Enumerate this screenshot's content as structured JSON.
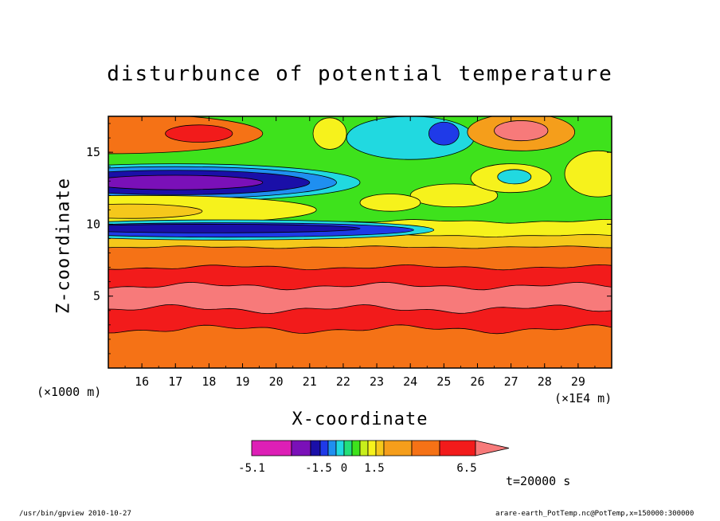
{
  "chart_data": {
    "type": "heatmap",
    "title": "disturbunce of potential temperature",
    "xlabel": "X-coordinate",
    "ylabel": "Z-coordinate",
    "x_multiplier": "(×1E4 m)",
    "y_multiplier": "(×1000 m)",
    "xlim": [
      15,
      30
    ],
    "ylim": [
      0,
      17.5
    ],
    "x_ticks": [
      "16",
      "17",
      "18",
      "19",
      "20",
      "21",
      "22",
      "23",
      "24",
      "25",
      "26",
      "27",
      "28",
      "29"
    ],
    "y_ticks": [
      "5",
      "10",
      "15"
    ],
    "timestamp": "t=20000 s",
    "colorbar": {
      "tick_labels": [
        "-5.1",
        "-1.5",
        "0",
        "1.5",
        "6.5"
      ],
      "colors": [
        "#dd1fb6",
        "#7a10b8",
        "#1a0fa8",
        "#1f3ae8",
        "#1f8ff0",
        "#21d9e0",
        "#22e07a",
        "#3ee21c",
        "#c8ef1c",
        "#f6f21c",
        "#f5c81b",
        "#f59e1b",
        "#f57216",
        "#f21b1b",
        "#f77a7a",
        "#f7b0b0"
      ]
    },
    "bands": [
      {
        "name": "surface-orange",
        "color": "#f57216"
      },
      {
        "name": "lower-red",
        "color": "#f21b1b"
      },
      {
        "name": "mid-pink",
        "color": "#f77a7a"
      },
      {
        "name": "upper-red",
        "color": "#f21b1b"
      },
      {
        "name": "upper-orange",
        "color": "#f57216"
      },
      {
        "name": "green-region",
        "color": "#3ee21c"
      },
      {
        "name": "top-orange",
        "color": "#f57216"
      }
    ]
  },
  "footer": {
    "left": "/usr/bin/gpview   2010-10-27",
    "right": "arare-earth_PotTemp.nc@PotTemp,x=150000:300000"
  }
}
